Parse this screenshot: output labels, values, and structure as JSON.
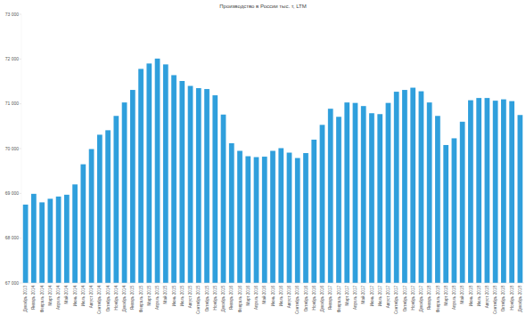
{
  "chart_data": {
    "type": "bar",
    "title": "Производство в России тыс. т, LTM",
    "categories": [
      "Декабрь 2013",
      "Январь 2014",
      "Февраль 2014",
      "Март 2014",
      "Апрель 2014",
      "Май 2014",
      "Июнь 2014",
      "Июль 2014",
      "Август 2014",
      "Сентябрь 2014",
      "Октябрь 2014",
      "Ноябрь 2014",
      "Декабрь 2014",
      "Январь 2015",
      "Февраль 2015",
      "Март 2015",
      "Апрель 2015",
      "Май 2015",
      "Июнь 2015",
      "Июль 2015",
      "Август 2015",
      "Сентябрь 2015",
      "Октябрь 2015",
      "Ноябрь 2015",
      "Декабрь 2015",
      "Январь 2016",
      "Февраль 2016",
      "Март 2016",
      "Апрель 2016",
      "Май 2016",
      "Июнь 2016",
      "Июль 2016",
      "Август 2016",
      "Сентябрь 2016",
      "Октябрь 2016",
      "Ноябрь 2016",
      "Декабрь 2016",
      "Январь 2017",
      "Февраль 2017",
      "Март 2017",
      "Апрель 2017",
      "Май 2017",
      "Июнь 2017",
      "Июль 2017",
      "Август 2017",
      "Сентябрь 2017",
      "Октябрь 2017",
      "Ноябрь 2017",
      "Декабрь 2017",
      "Январь 2018",
      "Февраль 2018",
      "Март 2018",
      "Апрель 2018",
      "Май 2018",
      "Июнь 2018",
      "Июль 2018",
      "Август 2018",
      "Сентябрь 2018",
      "Октябрь 2018",
      "Ноябрь 2018",
      "Декабрь 2018"
    ],
    "values": [
      68750,
      68990,
      68800,
      68880,
      68930,
      68970,
      69200,
      69650,
      69990,
      70310,
      70410,
      70730,
      71030,
      71310,
      71780,
      71900,
      72010,
      71880,
      71640,
      71510,
      71400,
      71350,
      71330,
      71190,
      70760,
      70120,
      69950,
      69830,
      69810,
      69820,
      69950,
      70010,
      69910,
      69790,
      69900,
      70200,
      70530,
      70890,
      70710,
      71030,
      71020,
      70950,
      70790,
      70770,
      71020,
      71270,
      71310,
      71360,
      71280,
      71030,
      70730,
      70080,
      70230,
      70600,
      71080,
      71130,
      71130,
      71070,
      71100,
      71060,
      70750
    ],
    "color": "#2f9fdc",
    "ylim": [
      67000,
      73000
    ],
    "yticks": [
      {
        "value": 67000,
        "label": "67 000"
      },
      {
        "value": 68000,
        "label": "68 000"
      },
      {
        "value": 69000,
        "label": "69 000"
      },
      {
        "value": 70000,
        "label": "70 000"
      },
      {
        "value": 71000,
        "label": "71 000"
      },
      {
        "value": 72000,
        "label": "72 000"
      },
      {
        "value": 73000,
        "label": "73 000"
      }
    ],
    "grid": false
  }
}
